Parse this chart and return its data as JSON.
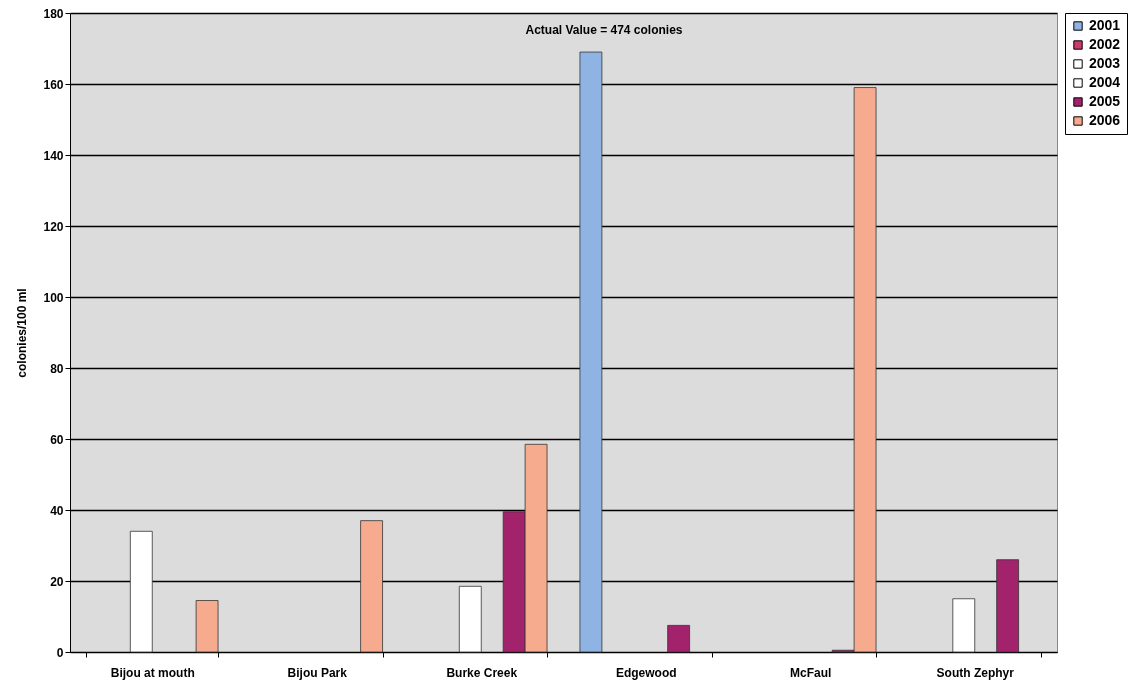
{
  "chart_data": {
    "type": "bar",
    "ylabel": "colonies/100 ml",
    "categories": [
      "Bijou at mouth",
      "Bijou Park",
      "Burke Creek",
      "Edgewood",
      "McFaul",
      "South Zephyr"
    ],
    "series": [
      {
        "name": "2001",
        "color": "#8fb4e3",
        "values": [
          null,
          null,
          null,
          169,
          null,
          null
        ]
      },
      {
        "name": "2002",
        "color": "#cc3a6e",
        "values": [
          null,
          null,
          null,
          null,
          null,
          null
        ]
      },
      {
        "name": "2003",
        "color": "#ffffff",
        "values": [
          34,
          null,
          18.5,
          null,
          null,
          15
        ]
      },
      {
        "name": "2004",
        "color": "#ffffff",
        "values": [
          null,
          null,
          null,
          null,
          null,
          null
        ]
      },
      {
        "name": "2005",
        "color": "#a2226c",
        "values": [
          null,
          null,
          39.5,
          7.5,
          0.5,
          26
        ]
      },
      {
        "name": "2006",
        "color": "#f7ab8e",
        "values": [
          14.5,
          37,
          58.5,
          null,
          159,
          null
        ]
      }
    ],
    "ylim": [
      0,
      180
    ],
    "yticks": [
      0,
      20,
      40,
      60,
      80,
      100,
      120,
      140,
      160,
      180
    ],
    "grid": "y",
    "legend": "right",
    "annotations": [
      "Actual Value = 474 colonies"
    ]
  }
}
